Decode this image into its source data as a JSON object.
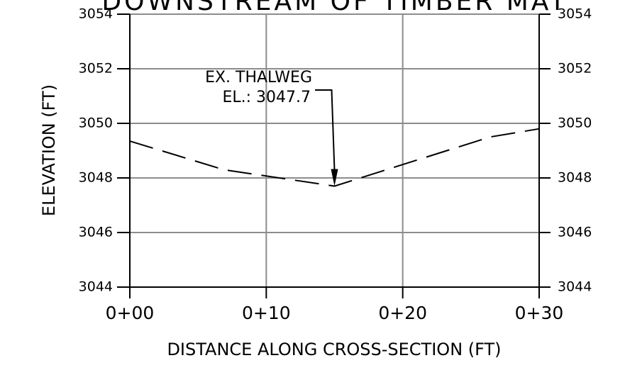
{
  "chart_data": {
    "type": "line",
    "title": "DOWNSTREAM OF TIMBER MAT",
    "xlabel": "DISTANCE ALONG CROSS-SECTION (FT)",
    "ylabel": "ELEVATION (FT)",
    "x": [
      0,
      6.9,
      15,
      26.4,
      30
    ],
    "series": [
      {
        "color": "#000000",
        "values": [
          3049.35,
          3048.3,
          3047.7,
          3049.5,
          3049.8
        ]
      }
    ],
    "xlim": [
      0,
      30
    ],
    "xticks": [
      {
        "value": 0,
        "label": "0+00"
      },
      {
        "value": 10,
        "label": "0+10"
      },
      {
        "value": 20,
        "label": "0+20"
      },
      {
        "value": 30,
        "label": "0+30"
      }
    ],
    "ylim": [
      3044,
      3054
    ],
    "yticks": [
      3044,
      3046,
      3048,
      3050,
      3052,
      3054
    ],
    "y2lim": [
      3044,
      3054
    ],
    "y2ticks": [
      3044,
      3046,
      3048,
      3050,
      3052,
      3054
    ],
    "grid": true,
    "annotation": {
      "lines": [
        "EX. THALWEG",
        "EL.: 3047.7"
      ],
      "x": 15,
      "y": 3047.7
    }
  }
}
